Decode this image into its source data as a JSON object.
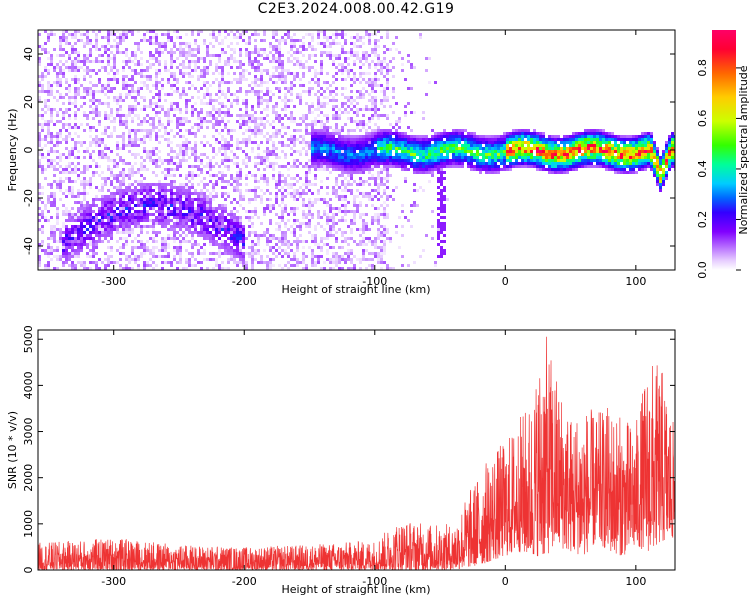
{
  "title": "C2E3.2024.008.00.42.G19",
  "chart_data": [
    {
      "type": "heatmap",
      "xlabel": "Height of straight line (km)",
      "ylabel": "Frequency (Hz)",
      "xlim": [
        -358,
        130
      ],
      "ylim": [
        -50,
        50
      ],
      "xticks": [
        -300,
        -200,
        -100,
        0,
        100
      ],
      "xtick_labels": [
        "-300",
        "-200",
        "-100",
        "0",
        "100"
      ],
      "yticks": [
        -40,
        -20,
        0,
        20,
        40
      ],
      "ytick_labels": [
        "-40",
        "-20",
        "0",
        "20",
        "40"
      ],
      "colorbar": {
        "label": "Normalized spectral amplitude",
        "range": [
          0.0,
          0.95
        ],
        "ticks": [
          0.0,
          0.2,
          0.4,
          0.6,
          0.8
        ],
        "tick_labels": [
          "0.0",
          "0.2",
          "0.4",
          "0.6",
          "0.8"
        ],
        "colormap": [
          "#ffffff",
          "#e6ccff",
          "#b366ff",
          "#8000ff",
          "#3300ff",
          "#0066ff",
          "#00ccff",
          "#00ff99",
          "#33ff00",
          "#ccff00",
          "#ffcc00",
          "#ff6600",
          "#ff0033",
          "#ff0066"
        ]
      },
      "features": {
        "noise_region_x": [
          -358,
          -40
        ],
        "noise_density": "high for x < -90, sparse between -90 and -40, none above",
        "carrier_band_x": [
          -150,
          130
        ],
        "carrier_center_freq": 0,
        "carrier_width_hz": 8,
        "carrier_peak_amplitude": 0.9,
        "arc_feature": {
          "x_range": [
            -340,
            -200
          ],
          "freq_peak": -22,
          "freq_ends": -38
        },
        "streak_near_x": -50,
        "dip_near_x": 118
      }
    },
    {
      "type": "line",
      "xlabel": "Height of straight line (km)",
      "ylabel": "SNR (10 * v/v)",
      "xlim": [
        -358,
        130
      ],
      "ylim": [
        0,
        5200
      ],
      "xticks": [
        -300,
        -200,
        -100,
        0,
        100
      ],
      "xtick_labels": [
        "-300",
        "-200",
        "-100",
        "0",
        "100"
      ],
      "yticks": [
        0,
        1000,
        2000,
        3000,
        4000,
        5000
      ],
      "ytick_labels": [
        "0",
        "1000",
        "2000",
        "3000",
        "4000",
        "5000"
      ],
      "color": "#ee3333",
      "series": [
        {
          "x": [
            -350,
            -300,
            -250,
            -200,
            -150,
            -100,
            -80,
            -60,
            -40,
            -30,
            -20,
            -10,
            0,
            10,
            20,
            30,
            40,
            50,
            60,
            70,
            80,
            90,
            100,
            110,
            120,
            130
          ],
          "envelope_max": [
            600,
            700,
            550,
            500,
            550,
            650,
            1100,
            1000,
            1000,
            1600,
            2100,
            2600,
            2800,
            3300,
            3700,
            5200,
            4200,
            3400,
            3600,
            3400,
            3600,
            3300,
            3200,
            4600,
            4400,
            3000
          ],
          "envelope_min": [
            0,
            0,
            0,
            0,
            0,
            0,
            0,
            0,
            0,
            50,
            100,
            200,
            300,
            400,
            300,
            300,
            500,
            400,
            300,
            600,
            400,
            300,
            500,
            400,
            600,
            700
          ]
        }
      ]
    }
  ]
}
